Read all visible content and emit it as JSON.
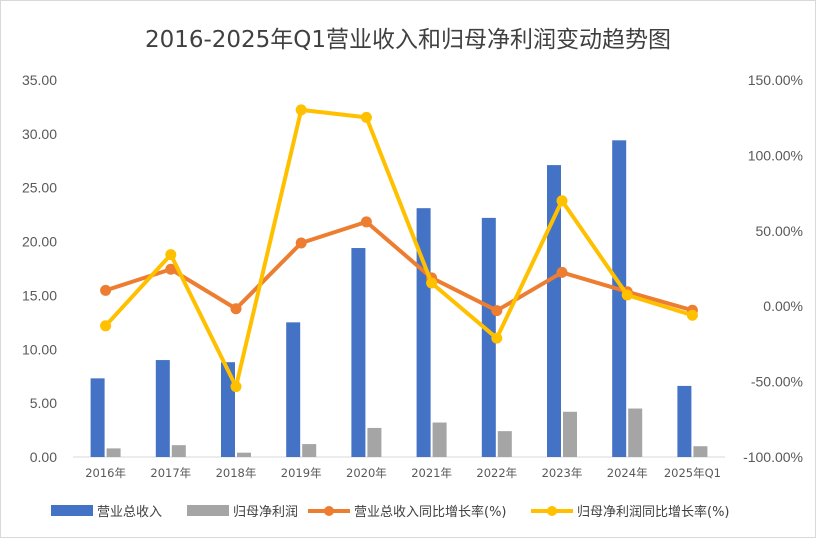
{
  "chart_data": {
    "type": "bar",
    "title": "2016-2025年Q1营业收入和归母净利润变动趋势图",
    "categories": [
      "2016年",
      "2017年",
      "2018年",
      "2019年",
      "2020年",
      "2021年",
      "2022年",
      "2023年",
      "2024年",
      "2025年Q1"
    ],
    "y_left": {
      "min": 0,
      "max": 35,
      "step": 5,
      "tick_labels": [
        "0.00",
        "5.00",
        "10.00",
        "15.00",
        "20.00",
        "25.00",
        "30.00",
        "35.00"
      ]
    },
    "y_right": {
      "min": -100,
      "max": 150,
      "step": 50,
      "tick_labels": [
        "-100.00%",
        "-50.00%",
        "0.00%",
        "50.00%",
        "100.00%",
        "150.00%"
      ]
    },
    "series": [
      {
        "name": "营业总收入",
        "kind": "bar",
        "axis": "left",
        "color": "#4472C4",
        "values": [
          7.3,
          9.0,
          8.8,
          12.5,
          19.4,
          23.1,
          22.2,
          27.1,
          29.4,
          6.6
        ]
      },
      {
        "name": "归母净利润",
        "kind": "bar",
        "axis": "left",
        "color": "#A5A5A5",
        "values": [
          0.8,
          1.1,
          0.4,
          1.2,
          2.7,
          3.2,
          2.4,
          4.2,
          4.5,
          1.0
        ]
      },
      {
        "name": "营业总收入同比增长率(%)",
        "kind": "line",
        "axis": "right",
        "color": "#ED7D31",
        "values": [
          10.5,
          24.5,
          -1.7,
          41.9,
          55.9,
          18.8,
          -2.9,
          22.4,
          9.6,
          -2.7
        ]
      },
      {
        "name": "归母净利润同比增长率(%)",
        "kind": "line",
        "axis": "right",
        "color": "#FFC000",
        "values": [
          -13.0,
          34.2,
          -53.3,
          130.2,
          125.2,
          15.4,
          -21.2,
          69.9,
          7.4,
          -6.0
        ]
      }
    ],
    "legend_position": "bottom",
    "grid": false
  }
}
